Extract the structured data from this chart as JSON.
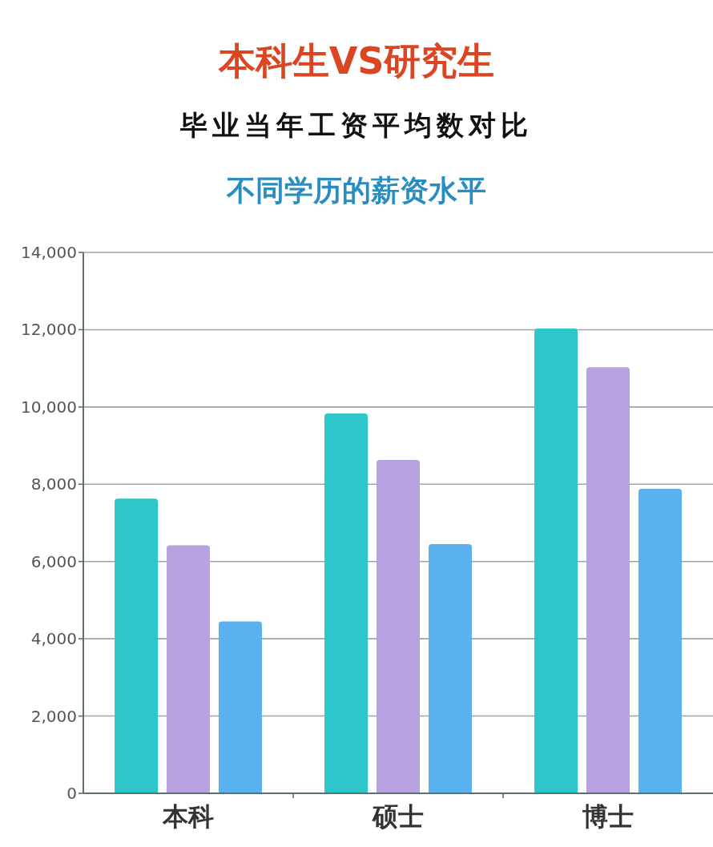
{
  "chart_data": {
    "type": "bar",
    "title": "本科生VS研究生",
    "subtitle": "毕业当年工资平均数对比",
    "annotations": [
      "不同学历的薪资水平"
    ],
    "categories": [
      "本科",
      "硕士",
      "博士"
    ],
    "series": [
      {
        "color": "#2ec7c9",
        "values": [
          7630,
          9830,
          12030
        ]
      },
      {
        "color": "#b6a2de",
        "values": [
          6420,
          8630,
          11030
        ]
      },
      {
        "color": "#5ab1ef",
        "values": [
          4450,
          6450,
          7880
        ]
      }
    ],
    "ylim": [
      0,
      14000
    ],
    "yticks": [
      0,
      {
        "value": 2000,
        "label": "2,000"
      },
      {
        "value": 4000,
        "label": "4,000"
      },
      {
        "value": 6000,
        "label": "6,000"
      },
      {
        "value": 8000,
        "label": "8,000"
      },
      {
        "value": 10000,
        "label": "10,000"
      },
      {
        "value": 12000,
        "label": "12,000"
      },
      {
        "value": 14000,
        "label": "14,000"
      }
    ],
    "grid": "y"
  }
}
